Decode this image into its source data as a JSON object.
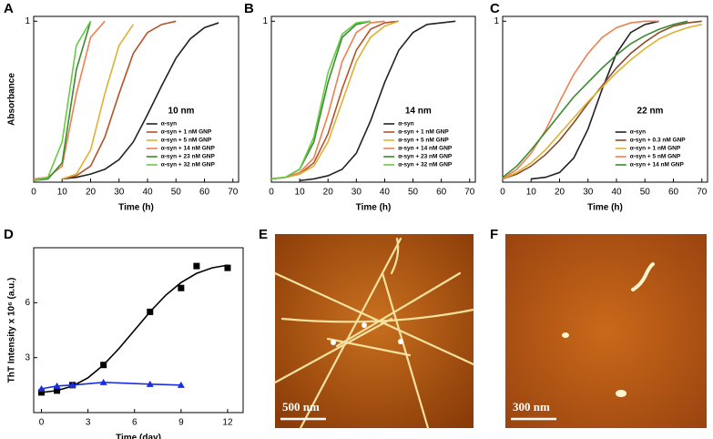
{
  "chart_data": [
    {
      "type": "line",
      "label": "A",
      "annotation": "10 nm",
      "xlabel": "Time (h)",
      "ylabel": "Absorbance",
      "legend": "lower right",
      "x": [
        0,
        5,
        10,
        15,
        20,
        25,
        30,
        35,
        40,
        45,
        50,
        55,
        60,
        65,
        70
      ],
      "xlim": [
        0,
        72
      ],
      "ylim": [
        0,
        1.03
      ],
      "xticks": [
        0,
        10,
        20,
        30,
        40,
        50,
        60,
        70
      ],
      "yticks": [
        1
      ],
      "series": [
        {
          "name": "α-syn",
          "color": "#222222",
          "values": [
            null,
            null,
            0.02,
            0.03,
            0.05,
            0.08,
            0.14,
            0.25,
            0.42,
            0.6,
            0.77,
            0.89,
            0.96,
            0.99,
            null
          ]
        },
        {
          "name": "α-syn + 1 nM GNP",
          "color": "#b5522a",
          "values": [
            null,
            null,
            0.02,
            0.04,
            0.1,
            0.28,
            0.55,
            0.8,
            0.93,
            0.98,
            1,
            null,
            null,
            null,
            null
          ]
        },
        {
          "name": "α-syn + 5 nM GNP",
          "color": "#e0b030",
          "values": [
            null,
            null,
            0.02,
            0.05,
            0.2,
            0.55,
            0.85,
            0.98,
            null,
            null,
            null,
            null,
            null,
            null,
            null
          ]
        },
        {
          "name": "α-syn + 14 nM GNP",
          "color": "#f07f50",
          "values": [
            0.02,
            0.03,
            0.1,
            0.55,
            0.9,
            1,
            null,
            null,
            null,
            null,
            null,
            null,
            null,
            null,
            null
          ]
        },
        {
          "name": "α-syn + 23 nM GNP",
          "color": "#3a8a30",
          "values": [
            0.01,
            0.02,
            0.12,
            0.7,
            1,
            null,
            null,
            null,
            null,
            null,
            null,
            null,
            null,
            null,
            null
          ]
        },
        {
          "name": "α-syn + 32 nM GNP",
          "color": "#66cc44",
          "values": [
            0.01,
            0.03,
            0.25,
            0.85,
            1,
            null,
            null,
            null,
            null,
            null,
            null,
            null,
            null,
            null,
            null
          ]
        }
      ]
    },
    {
      "type": "line",
      "label": "B",
      "annotation": "14 nm",
      "xlabel": "Time (h)",
      "legend": "lower right",
      "x": [
        0,
        5,
        10,
        15,
        20,
        25,
        30,
        35,
        40,
        45,
        50,
        55,
        60,
        65,
        70
      ],
      "xlim": [
        0,
        72
      ],
      "ylim": [
        0,
        1.03
      ],
      "xticks": [
        0,
        10,
        20,
        30,
        40,
        50,
        60,
        70
      ],
      "yticks": [
        1
      ],
      "series": [
        {
          "name": "α-syn",
          "color": "#222222",
          "values": [
            null,
            null,
            0.01,
            0.02,
            0.04,
            0.08,
            0.18,
            0.38,
            0.62,
            0.82,
            0.93,
            0.98,
            0.99,
            1,
            null
          ]
        },
        {
          "name": "α-syn + 1 nM GNP",
          "color": "#b5522a",
          "values": [
            0.02,
            0.03,
            0.05,
            0.12,
            0.3,
            0.58,
            0.82,
            0.95,
            0.99,
            1,
            null,
            null,
            null,
            null,
            null
          ]
        },
        {
          "name": "α-syn + 5 nM GNP",
          "color": "#e0b030",
          "values": [
            0.02,
            0.03,
            0.05,
            0.1,
            0.25,
            0.5,
            0.75,
            0.9,
            0.97,
            1,
            null,
            null,
            null,
            null,
            null
          ]
        },
        {
          "name": "α-syn + 14 nM GNP",
          "color": "#f07f50",
          "values": [
            0.02,
            0.03,
            0.06,
            0.15,
            0.42,
            0.75,
            0.93,
            0.99,
            1,
            null,
            null,
            null,
            null,
            null,
            null
          ]
        },
        {
          "name": "α-syn + 23 nM GNP",
          "color": "#3a8a30",
          "values": [
            0.02,
            0.03,
            0.08,
            0.25,
            0.62,
            0.9,
            0.98,
            1,
            null,
            null,
            null,
            null,
            null,
            null,
            null
          ]
        },
        {
          "name": "α-syn + 32 nM GNP",
          "color": "#66cc44",
          "values": [
            0.02,
            0.03,
            0.08,
            0.28,
            0.68,
            0.92,
            0.99,
            1,
            null,
            null,
            null,
            null,
            null,
            null,
            null
          ]
        }
      ]
    },
    {
      "type": "line",
      "label": "C",
      "annotation": "22 nm",
      "xlabel": "Time (h)",
      "legend": "lower right",
      "x": [
        0,
        5,
        10,
        15,
        20,
        25,
        30,
        35,
        40,
        45,
        50,
        55,
        60,
        65,
        70
      ],
      "xlim": [
        0,
        72
      ],
      "ylim": [
        0,
        1.03
      ],
      "xticks": [
        0,
        10,
        20,
        30,
        40,
        50,
        60,
        70
      ],
      "yticks": [
        1
      ],
      "series": [
        {
          "name": "α-syn",
          "color": "#222222",
          "values": [
            null,
            null,
            0.02,
            0.03,
            0.06,
            0.15,
            0.33,
            0.58,
            0.8,
            0.93,
            0.98,
            1,
            null,
            null,
            null
          ]
        },
        {
          "name": "α-syn + 0.3 nM GNP",
          "color": "#8b4a2a",
          "values": [
            0.02,
            0.05,
            0.1,
            0.17,
            0.26,
            0.37,
            0.49,
            0.6,
            0.71,
            0.8,
            0.87,
            0.93,
            0.97,
            0.99,
            1
          ]
        },
        {
          "name": "α-syn + 1 nM GNP",
          "color": "#e0b030",
          "values": [
            0.02,
            0.06,
            0.12,
            0.2,
            0.3,
            0.4,
            0.5,
            0.59,
            0.68,
            0.76,
            0.83,
            0.89,
            0.93,
            0.96,
            0.98
          ]
        },
        {
          "name": "α-syn + 5 nM GNP",
          "color": "#f07f50",
          "values": [
            0.02,
            0.08,
            0.18,
            0.32,
            0.5,
            0.67,
            0.8,
            0.9,
            0.96,
            0.99,
            1,
            1,
            null,
            null,
            null
          ]
        },
        {
          "name": "α-syn + 14 nM GNP",
          "color": "#3a8a30",
          "values": [
            0.03,
            0.1,
            0.2,
            0.31,
            0.42,
            0.53,
            0.62,
            0.71,
            0.79,
            0.86,
            0.91,
            0.95,
            0.98,
            1,
            null
          ]
        }
      ]
    },
    {
      "type": "scatter",
      "label": "D",
      "xlabel": "Time (day)",
      "ylabel": "ThT Intensity x 10⁶ (a.u.)",
      "xlim": [
        -0.5,
        13
      ],
      "ylim": [
        0,
        9
      ],
      "xticks": [
        0,
        3,
        6,
        9,
        12
      ],
      "yticks": [
        3,
        6
      ],
      "series": [
        {
          "color": "#000000",
          "marker": "square",
          "line": false,
          "x": [
            0,
            1,
            2,
            4,
            7,
            9,
            10,
            12
          ],
          "values": [
            1.1,
            1.2,
            1.5,
            2.6,
            5.5,
            6.8,
            8.0,
            7.9
          ]
        },
        {
          "color": "#000000",
          "marker": "none",
          "line": true,
          "x": [
            0,
            1,
            2,
            3,
            4,
            5,
            6,
            7,
            8,
            9,
            10,
            11,
            12
          ],
          "values": [
            1.1,
            1.2,
            1.45,
            1.9,
            2.6,
            3.5,
            4.5,
            5.5,
            6.4,
            7.1,
            7.6,
            7.9,
            8.05
          ]
        },
        {
          "color": "#1a2ee0",
          "marker": "triangle",
          "line": true,
          "x": [
            0,
            1,
            2,
            4,
            7,
            9
          ],
          "values": [
            1.3,
            1.45,
            1.5,
            1.65,
            1.55,
            1.5
          ]
        }
      ]
    }
  ],
  "images": [
    {
      "label": "E",
      "scale_bar": "500 nm"
    },
    {
      "label": "F",
      "scale_bar": "300 nm"
    }
  ]
}
